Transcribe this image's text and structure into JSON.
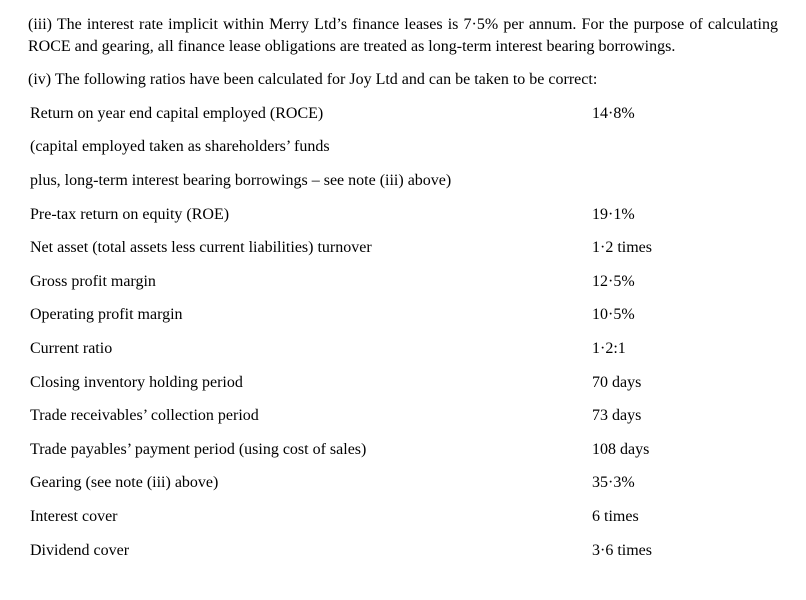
{
  "note_iii": "(iii) The interest rate implicit within Merry Ltd’s finance leases is 7·5% per annum. For the purpose of calculating ROCE and gearing, all finance lease obligations are treated as long-term interest bearing borrowings.",
  "note_iv_intro": "(iv) The following ratios have been calculated for Joy Ltd and can be taken to be correct:",
  "roce": {
    "label": "Return on year end capital employed (ROCE)",
    "value": "14·8%",
    "subnote1": "(capital employed taken as shareholders’ funds",
    "subnote2": "plus, long-term interest bearing borrowings – see note (iii) above)"
  },
  "ratios": [
    {
      "label": "Pre-tax return on equity (ROE)",
      "value": "19·1%"
    },
    {
      "label": "Net asset (total assets less current liabilities) turnover",
      "value": "1·2 times"
    },
    {
      "label": "Gross profit margin",
      "value": "12·5%"
    },
    {
      "label": "Operating profit margin",
      "value": "10·5%"
    },
    {
      "label": "Current ratio",
      "value": "1·2:1"
    },
    {
      "label": "Closing inventory holding period",
      "value": "70 days"
    },
    {
      "label": "Trade receivables’ collection period",
      "value": "73 days"
    },
    {
      "label": "Trade payables’ payment period (using cost of sales)",
      "value": "108 days"
    },
    {
      "label": "Gearing (see note (iii) above)",
      "value": "35·3%"
    },
    {
      "label": "Interest cover",
      "value": "6 times"
    },
    {
      "label": "Dividend cover",
      "value": "3·6 times"
    }
  ]
}
